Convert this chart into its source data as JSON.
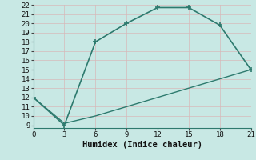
{
  "xlabel": "Humidex (Indice chaleur)",
  "line1_x": [
    0,
    3,
    6,
    9,
    12,
    15,
    18,
    21
  ],
  "line1_y": [
    12,
    9,
    18,
    20,
    21.7,
    21.7,
    19.8,
    15
  ],
  "line2_x": [
    0,
    3,
    6,
    9,
    12,
    15,
    18,
    21
  ],
  "line2_y": [
    12,
    9.2,
    10.0,
    11.0,
    12.0,
    13.0,
    14.0,
    15
  ],
  "line_color": "#2d7a6e",
  "bg_color": "#c8e8e4",
  "grid_major_color": "#f0d8d8",
  "grid_minor_color": "#d8ecea",
  "xlim": [
    0,
    21
  ],
  "ylim": [
    9,
    22
  ],
  "xticks": [
    0,
    3,
    6,
    9,
    12,
    15,
    18,
    21
  ],
  "yticks": [
    9,
    10,
    11,
    12,
    13,
    14,
    15,
    16,
    17,
    18,
    19,
    20,
    21,
    22
  ],
  "label_fontsize": 7.5,
  "tick_fontsize": 6.5
}
